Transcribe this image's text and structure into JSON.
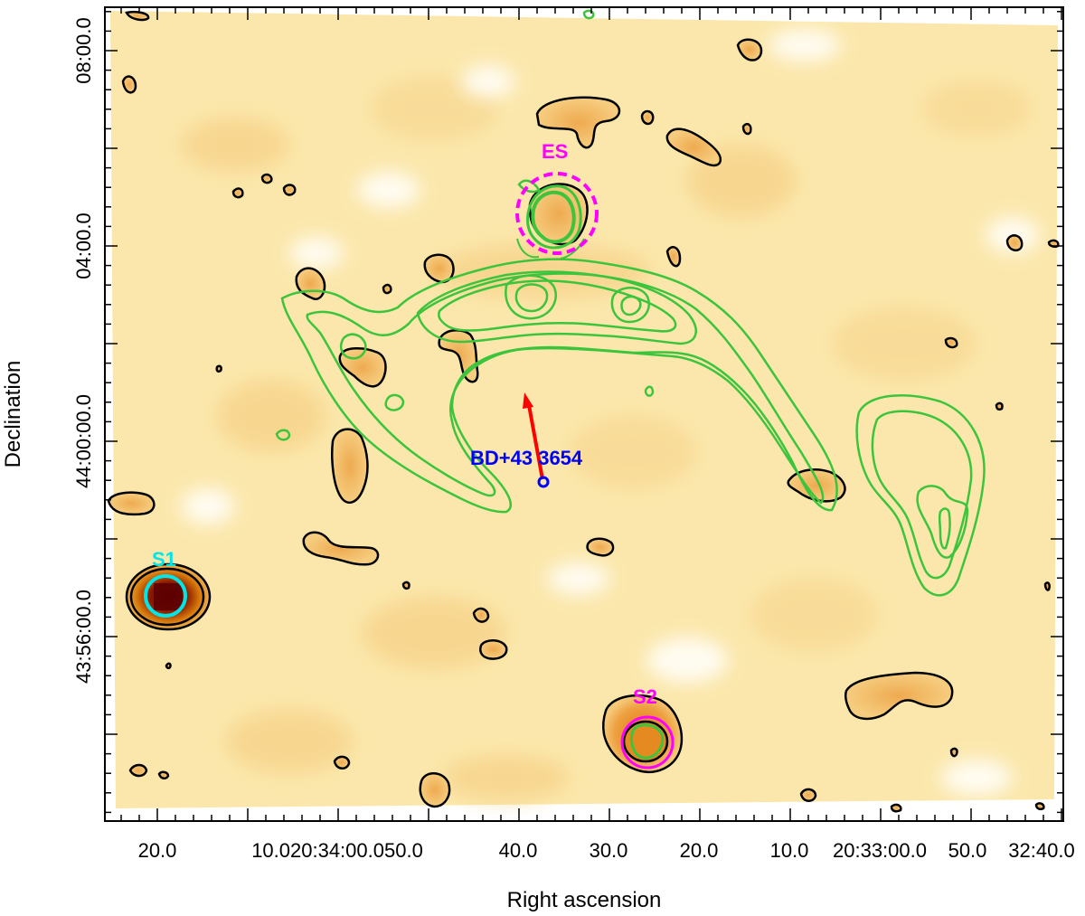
{
  "axes": {
    "xlabel": "Right ascension",
    "ylabel": "Declination",
    "x_tick_labels": [
      "20.0",
      "10.0",
      "20:34:00.0",
      "50.0",
      "40.0",
      "30.0",
      "20.0",
      "10.0",
      "20:33:00.0",
      "50.0",
      "32:40.0"
    ],
    "x_tick_display": [
      "20.0",
      "10.020:34:00.050.0",
      "40.0",
      "30.0",
      "20.0",
      "10.0",
      "20:33:00.0",
      "50.0",
      "32:40.0"
    ],
    "y_tick_labels": [
      "44:08:00.0",
      "44:04:00.0",
      "44:00:00.0",
      "43:56:00.0"
    ],
    "y_tick_display": [
      "08:00.0",
      "04:00.0",
      "44:00:00.0",
      "43:56:00.0"
    ]
  },
  "sources": {
    "star": {
      "label": "BD+43 3654",
      "color": "#0000ff"
    },
    "es": {
      "label": "ES",
      "color": "#ff00ff"
    },
    "s1": {
      "label": "S1",
      "color": "#00e5e5"
    },
    "s2": {
      "label": "S2",
      "color": "#ff00ff"
    }
  },
  "colors": {
    "background_map": "#fbe6a6",
    "black_contours": "#000000",
    "green_contours": "#3cc43c",
    "arrow": "#ff0000"
  }
}
